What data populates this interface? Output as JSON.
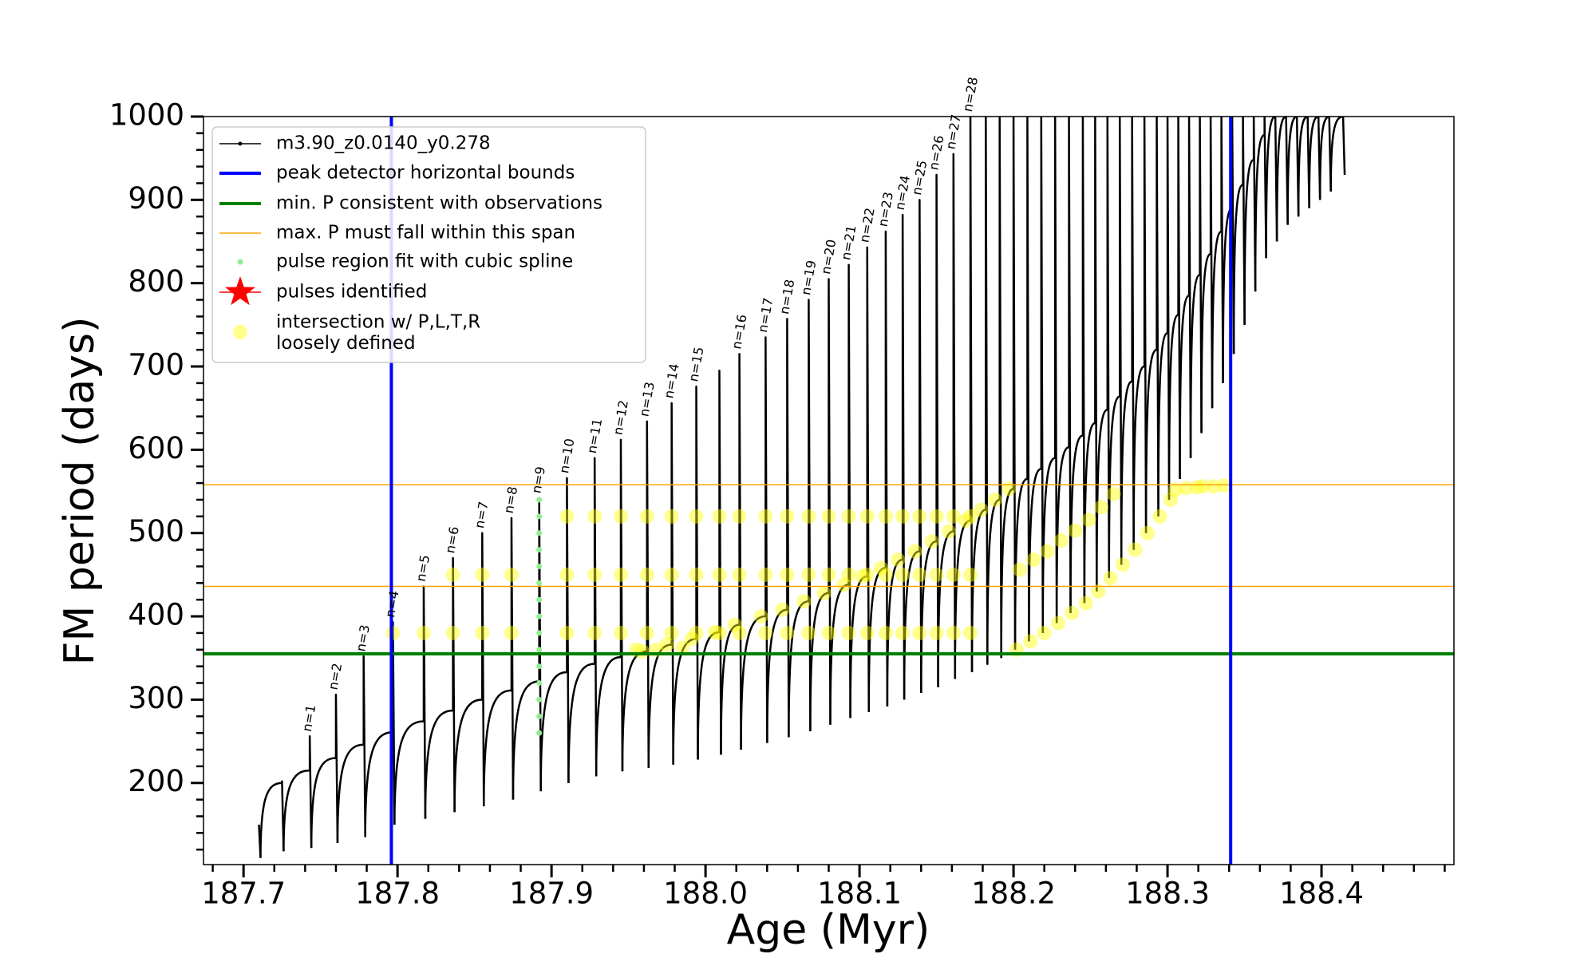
{
  "chart_data": {
    "type": "line",
    "x_label": "Age (Myr)",
    "y_label": "FM period (days)",
    "xlim": [
      187.674,
      188.486
    ],
    "ylim": [
      102,
      1000
    ],
    "xticks": [
      187.7,
      187.8,
      187.9,
      {
        "value": 188,
        "label": "188.0"
      },
      188.1,
      188.2,
      188.3,
      188.4
    ],
    "yticks": [
      200,
      300,
      400,
      500,
      600,
      700,
      800,
      900,
      1000
    ],
    "minor_ticks": true,
    "grid": false,
    "legend": "upper left",
    "series": [
      {
        "name": "m3.90_z0.0140_y0.278",
        "kind": "pulses",
        "color": "#000000",
        "x": [
          187.71,
          187.725,
          187.743,
          187.76,
          187.778,
          187.797,
          187.817,
          187.836,
          187.855,
          187.874,
          187.892,
          187.91,
          187.928,
          187.945,
          187.962,
          187.978,
          187.994,
          188.009,
          188.022,
          188.039,
          188.053,
          188.067,
          188.08,
          188.093,
          188.105,
          188.117,
          188.128,
          188.139,
          188.15,
          188.161,
          188.172,
          188.182,
          188.191,
          188.2,
          188.209,
          188.218,
          188.227,
          188.236,
          188.245,
          188.253,
          188.261,
          188.269,
          188.277,
          188.285,
          188.293,
          188.3,
          188.307,
          188.314,
          188.321,
          188.328,
          188.335,
          188.342,
          188.349,
          188.356,
          188.363,
          188.37,
          188.377,
          188.384,
          188.391,
          188.398,
          188.405,
          188.414
        ],
        "base": [
          150,
          200,
          215,
          230,
          246,
          261,
          274,
          287,
          300,
          311,
          322,
          333,
          343,
          351,
          358,
          366,
          373,
          381,
          390,
          400,
          408,
          418,
          428,
          438,
          448,
          458,
          468,
          478,
          490,
          502,
          515,
          528,
          540,
          553,
          565,
          577,
          590,
          603,
          617,
          632,
          648,
          664,
          682,
          700,
          720,
          740,
          762,
          785,
          810,
          835,
          862,
          890,
          918,
          948,
          978,
          1000,
          1000,
          1000,
          1000,
          1000,
          1000,
          1000
        ],
        "peak": [
          150,
          202,
          256,
          306,
          352,
          393,
          436,
          470,
          500,
          518,
          542,
          566,
          590,
          612,
          634,
          656,
          676,
          695,
          715,
          735,
          757,
          780,
          805,
          822,
          843,
          862,
          882,
          900,
          930,
          955,
          1000,
          1000,
          1000,
          1000,
          1000,
          1000,
          1000,
          1000,
          1000,
          1000,
          1000,
          1000,
          1000,
          1000,
          1000,
          1000,
          1000,
          1000,
          1000,
          1000,
          1000,
          1000,
          1000,
          1000,
          1000,
          1000,
          1000,
          1000,
          1000,
          1000,
          1000,
          1000
        ],
        "dip": [
          110,
          118,
          122,
          128,
          135,
          150,
          157,
          165,
          172,
          180,
          190,
          200,
          208,
          214,
          218,
          222,
          228,
          234,
          240,
          248,
          255,
          262,
          270,
          278,
          285,
          292,
          300,
          308,
          315,
          325,
          333,
          342,
          350,
          360,
          370,
          380,
          392,
          404,
          416,
          430,
          446,
          462,
          480,
          500,
          520,
          540,
          565,
          590,
          620,
          650,
          680,
          715,
          750,
          790,
          830,
          850,
          870,
          880,
          890,
          900,
          910,
          930
        ],
        "labels": [
          null,
          null,
          "n=1",
          "n=2",
          "n=3",
          "n=4",
          "n=5",
          "n=6",
          "n=7",
          "n=8",
          "n=9",
          "n=10",
          "n=11",
          "n=12",
          "n=13",
          "n=14",
          "n=15",
          null,
          "n=16",
          "n=17",
          "n=18",
          "n=19",
          "n=20",
          "n=21",
          "n=22",
          "n=23",
          "n=24",
          "n=25",
          "n=26",
          "n=27",
          "n=28",
          null,
          null,
          null,
          null,
          null,
          null,
          null,
          null,
          null,
          null,
          null,
          null,
          null,
          null,
          null,
          null,
          null,
          null,
          null,
          null,
          null,
          null,
          null,
          null,
          null,
          null,
          null,
          null,
          null,
          null,
          null
        ]
      },
      {
        "name": "peak detector horizontal bounds",
        "kind": "vline",
        "color": "#0000ff",
        "linewidth": 4,
        "x": [
          187.796,
          188.341
        ]
      },
      {
        "name": "min. P consistent with observations",
        "kind": "hline",
        "color": "#008000",
        "linewidth": 4,
        "values": [
          355
        ]
      },
      {
        "name": "max. P must fall within this span",
        "kind": "hline",
        "color": "#ffa500",
        "linewidth": 1.5,
        "values": [
          558,
          436
        ]
      },
      {
        "name": "pulse region fit with cubic spline",
        "kind": "scatter",
        "color": "#90ee90",
        "size": 3.5,
        "x": [
          187.892,
          187.892,
          187.892,
          187.892,
          187.892,
          187.892,
          187.892,
          187.892,
          187.892,
          187.892,
          187.892,
          187.892,
          187.892,
          187.892,
          187.892
        ],
        "values": [
          260,
          280,
          300,
          320,
          340,
          360,
          380,
          400,
          420,
          440,
          460,
          480,
          500,
          520,
          540
        ]
      },
      {
        "name": "pulses identified",
        "kind": "star",
        "color": "#ff0000",
        "x": [],
        "values": []
      },
      {
        "name": "intersection w/ P,L,T,R\nloosely defined",
        "kind": "scatter",
        "color": "#ffff00",
        "size": 9,
        "opacity": 0.45,
        "x": [
          187.797,
          187.817,
          187.836,
          187.836,
          187.855,
          187.855,
          187.874,
          187.874,
          187.91,
          187.91,
          187.91,
          187.928,
          187.928,
          187.928,
          187.945,
          187.945,
          187.945,
          187.962,
          187.962,
          187.962,
          187.978,
          187.978,
          187.978,
          187.994,
          187.994,
          187.994,
          188.009,
          188.009,
          188.009,
          188.022,
          188.022,
          188.022,
          188.039,
          188.039,
          188.039,
          188.053,
          188.053,
          188.053,
          188.067,
          188.067,
          188.067,
          188.08,
          188.08,
          188.08,
          188.093,
          188.093,
          188.093,
          188.105,
          188.105,
          188.105,
          188.117,
          188.117,
          188.117,
          188.128,
          188.128,
          188.128,
          188.139,
          188.139,
          188.139,
          188.15,
          188.15,
          188.15,
          188.161,
          188.161,
          188.161,
          188.172,
          188.172,
          188.172,
          187.959,
          187.975,
          187.991,
          188.006,
          188.019,
          188.036,
          188.05,
          188.064,
          188.077,
          188.09,
          188.102,
          188.114,
          188.125,
          188.136,
          188.147,
          188.158,
          188.169,
          188.179,
          188.188,
          188.197,
          188.204,
          188.213,
          188.222,
          188.231,
          188.24,
          188.249,
          188.257,
          188.265,
          188.202,
          188.211,
          188.22,
          188.229,
          188.238,
          188.247,
          188.255,
          188.263,
          188.271,
          188.279,
          188.287,
          188.295,
          188.302,
          188.305,
          188.312,
          188.319,
          188.323,
          188.33,
          188.337,
          187.955,
          187.968,
          187.985
        ],
        "values": [
          380,
          380,
          380,
          450,
          380,
          450,
          380,
          450,
          380,
          450,
          520,
          380,
          450,
          520,
          380,
          450,
          520,
          380,
          450,
          520,
          380,
          450,
          520,
          380,
          450,
          520,
          380,
          450,
          520,
          380,
          450,
          520,
          380,
          450,
          520,
          380,
          450,
          520,
          380,
          450,
          520,
          380,
          450,
          520,
          380,
          450,
          520,
          380,
          450,
          520,
          380,
          450,
          520,
          380,
          450,
          520,
          380,
          450,
          520,
          380,
          450,
          520,
          380,
          450,
          520,
          380,
          450,
          520,
          358,
          366,
          373,
          381,
          390,
          400,
          408,
          418,
          428,
          438,
          448,
          458,
          468,
          478,
          490,
          502,
          515,
          528,
          540,
          553,
          456,
          468,
          478,
          491,
          503,
          516,
          531,
          547,
          360,
          370,
          380,
          392,
          404,
          416,
          430,
          446,
          462,
          480,
          500,
          520,
          540,
          552,
          554,
          555,
          556,
          556,
          557,
          360,
          360,
          362
        ]
      }
    ]
  }
}
